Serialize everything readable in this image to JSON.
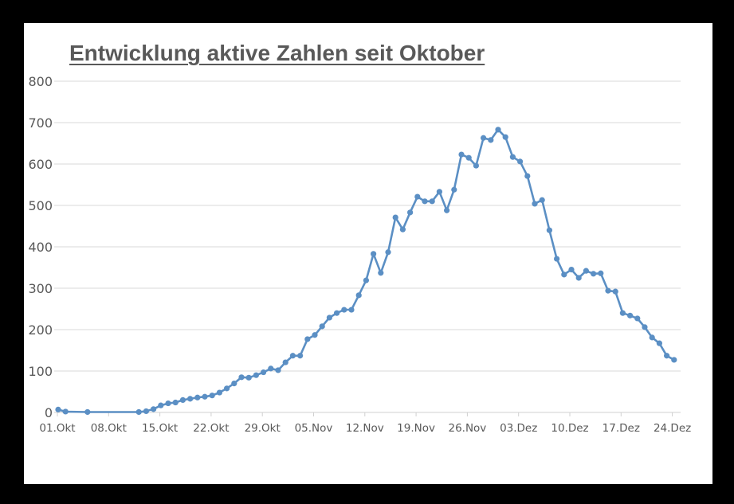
{
  "chart_data": {
    "type": "line",
    "title": "Entwicklung aktive Zahlen seit Oktober",
    "xlabel": "",
    "ylabel": "",
    "ylim": [
      0,
      800
    ],
    "yticks": [
      0,
      100,
      200,
      300,
      400,
      500,
      600,
      700,
      800
    ],
    "xtick_labels": [
      "01.Okt",
      "08.Okt",
      "15.Okt",
      "22.Okt",
      "29.Okt",
      "05.Nov",
      "12.Nov",
      "19.Nov",
      "26.Nov",
      "03.Dez",
      "10.Dez",
      "17.Dez",
      "24.Dez"
    ],
    "grid": "horizontal",
    "legend": "none",
    "line_color": "#5B8FC4",
    "series": [
      {
        "name": "aktive Zahlen",
        "points": [
          {
            "day": 0,
            "date": "01.Okt",
            "value": 7
          },
          {
            "day": 1,
            "date": "02.Okt",
            "value": 2
          },
          {
            "day": 4,
            "date": "05.Okt",
            "value": 1
          },
          {
            "day": 11,
            "date": "12.Okt",
            "value": 1
          },
          {
            "day": 12,
            "date": "13.Okt",
            "value": 3
          },
          {
            "day": 13,
            "date": "14.Okt",
            "value": 8
          },
          {
            "day": 14,
            "date": "15.Okt",
            "value": 17
          },
          {
            "day": 15,
            "date": "16.Okt",
            "value": 22
          },
          {
            "day": 16,
            "date": "17.Okt",
            "value": 24
          },
          {
            "day": 17,
            "date": "18.Okt",
            "value": 30
          },
          {
            "day": 18,
            "date": "19.Okt",
            "value": 33
          },
          {
            "day": 19,
            "date": "20.Okt",
            "value": 36
          },
          {
            "day": 20,
            "date": "21.Okt",
            "value": 38
          },
          {
            "day": 21,
            "date": "22.Okt",
            "value": 41
          },
          {
            "day": 22,
            "date": "23.Okt",
            "value": 48
          },
          {
            "day": 23,
            "date": "24.Okt",
            "value": 58
          },
          {
            "day": 24,
            "date": "25.Okt",
            "value": 70
          },
          {
            "day": 25,
            "date": "26.Okt",
            "value": 85
          },
          {
            "day": 26,
            "date": "27.Okt",
            "value": 84
          },
          {
            "day": 27,
            "date": "28.Okt",
            "value": 90
          },
          {
            "day": 28,
            "date": "29.Okt",
            "value": 97
          },
          {
            "day": 29,
            "date": "30.Okt",
            "value": 106
          },
          {
            "day": 30,
            "date": "31.Okt",
            "value": 102
          },
          {
            "day": 31,
            "date": "01.Nov",
            "value": 121
          },
          {
            "day": 32,
            "date": "02.Nov",
            "value": 137
          },
          {
            "day": 33,
            "date": "03.Nov",
            "value": 137
          },
          {
            "day": 34,
            "date": "04.Nov",
            "value": 177
          },
          {
            "day": 35,
            "date": "05.Nov",
            "value": 187
          },
          {
            "day": 36,
            "date": "06.Nov",
            "value": 208
          },
          {
            "day": 37,
            "date": "07.Nov",
            "value": 229
          },
          {
            "day": 38,
            "date": "08.Nov",
            "value": 240
          },
          {
            "day": 39,
            "date": "09.Nov",
            "value": 248
          },
          {
            "day": 40,
            "date": "10.Nov",
            "value": 248
          },
          {
            "day": 41,
            "date": "11.Nov",
            "value": 283
          },
          {
            "day": 42,
            "date": "12.Nov",
            "value": 319
          },
          {
            "day": 43,
            "date": "13.Nov",
            "value": 383
          },
          {
            "day": 44,
            "date": "14.Nov",
            "value": 337
          },
          {
            "day": 45,
            "date": "15.Nov",
            "value": 387
          },
          {
            "day": 46,
            "date": "16.Nov",
            "value": 471
          },
          {
            "day": 47,
            "date": "17.Nov",
            "value": 442
          },
          {
            "day": 48,
            "date": "18.Nov",
            "value": 483
          },
          {
            "day": 49,
            "date": "19.Nov",
            "value": 521
          },
          {
            "day": 50,
            "date": "20.Nov",
            "value": 510
          },
          {
            "day": 51,
            "date": "21.Nov",
            "value": 510
          },
          {
            "day": 52,
            "date": "22.Nov",
            "value": 533
          },
          {
            "day": 53,
            "date": "23.Nov",
            "value": 488
          },
          {
            "day": 54,
            "date": "24.Nov",
            "value": 538
          },
          {
            "day": 55,
            "date": "25.Nov",
            "value": 623
          },
          {
            "day": 56,
            "date": "26.Nov",
            "value": 615
          },
          {
            "day": 57,
            "date": "27.Nov",
            "value": 596
          },
          {
            "day": 58,
            "date": "28.Nov",
            "value": 663
          },
          {
            "day": 59,
            "date": "29.Nov",
            "value": 658
          },
          {
            "day": 60,
            "date": "30.Nov",
            "value": 683
          },
          {
            "day": 61,
            "date": "01.Dez",
            "value": 665
          },
          {
            "day": 62,
            "date": "02.Dez",
            "value": 617
          },
          {
            "day": 63,
            "date": "03.Dez",
            "value": 606
          },
          {
            "day": 64,
            "date": "04.Dez",
            "value": 571
          },
          {
            "day": 65,
            "date": "05.Dez",
            "value": 504
          },
          {
            "day": 66,
            "date": "06.Dez",
            "value": 513
          },
          {
            "day": 67,
            "date": "07.Dez",
            "value": 440
          },
          {
            "day": 68,
            "date": "08.Dez",
            "value": 371
          },
          {
            "day": 69,
            "date": "09.Dez",
            "value": 333
          },
          {
            "day": 70,
            "date": "10.Dez",
            "value": 345
          },
          {
            "day": 71,
            "date": "11.Dez",
            "value": 325
          },
          {
            "day": 72,
            "date": "12.Dez",
            "value": 342
          },
          {
            "day": 73,
            "date": "13.Dez",
            "value": 335
          },
          {
            "day": 74,
            "date": "14.Dez",
            "value": 336
          },
          {
            "day": 75,
            "date": "15.Dez",
            "value": 294
          },
          {
            "day": 76,
            "date": "16.Dez",
            "value": 292
          },
          {
            "day": 77,
            "date": "17.Dez",
            "value": 240
          },
          {
            "day": 78,
            "date": "18.Dez",
            "value": 234
          },
          {
            "day": 79,
            "date": "19.Dez",
            "value": 227
          },
          {
            "day": 80,
            "date": "20.Dez",
            "value": 206
          },
          {
            "day": 81,
            "date": "21.Dez",
            "value": 181
          },
          {
            "day": 82,
            "date": "22.Dez",
            "value": 167
          },
          {
            "day": 83,
            "date": "23.Dez",
            "value": 137
          },
          {
            "day": 84,
            "date": "24.Dez",
            "value": 127
          }
        ]
      }
    ]
  }
}
